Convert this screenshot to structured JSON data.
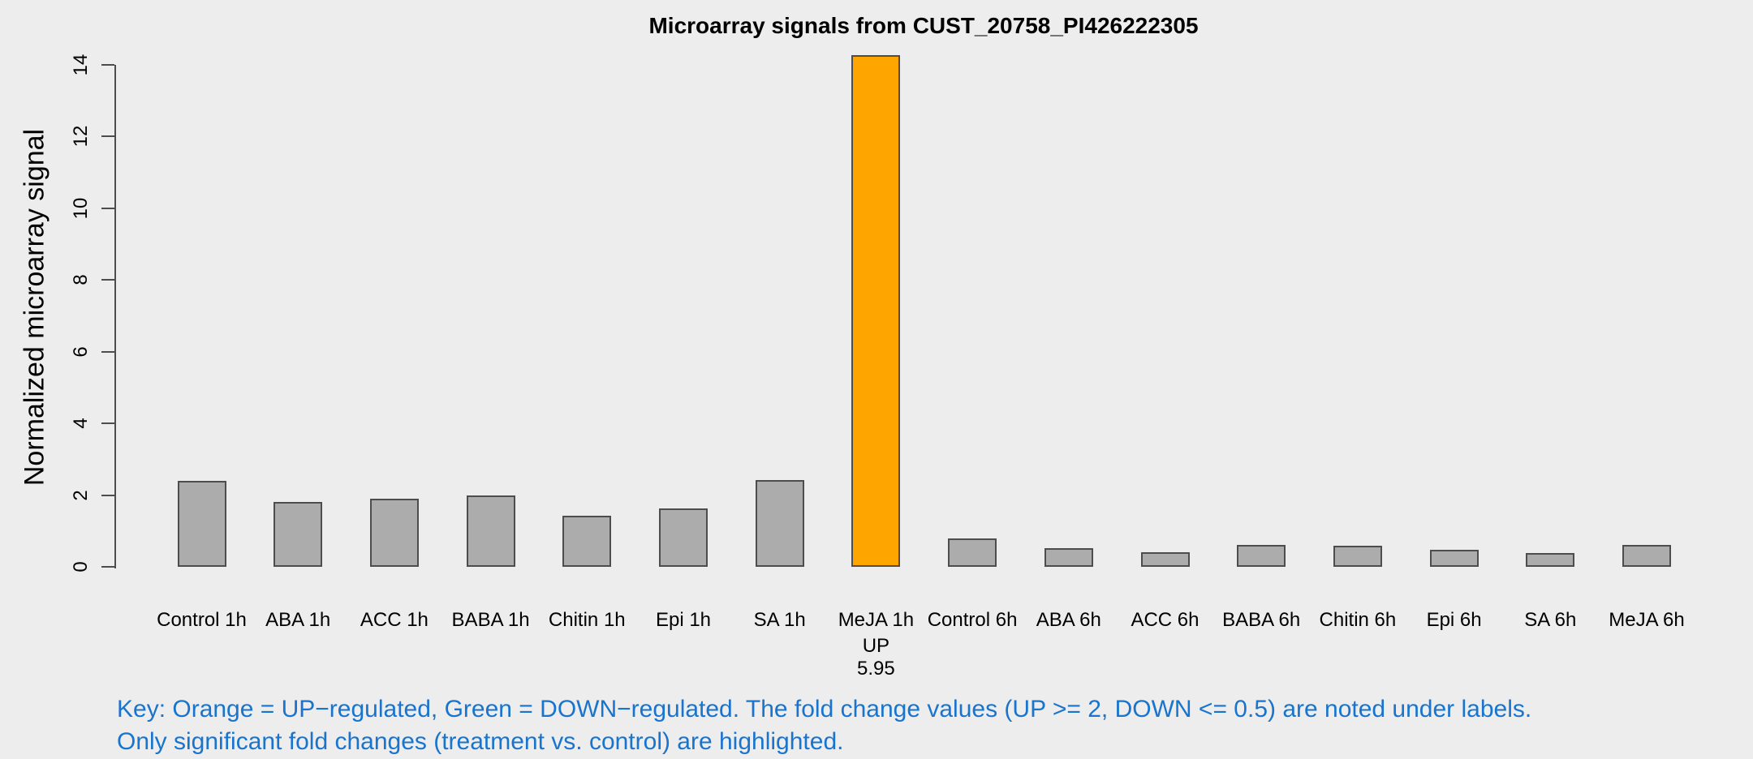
{
  "title": "Microarray signals from CUST_20758_PI426222305",
  "chart_data": {
    "type": "bar",
    "title": "Microarray signals from CUST_20758_PI426222305",
    "xlabel": "",
    "ylabel": "Normalized microarray signal",
    "ylim": [
      0,
      14.5
    ],
    "yticks": [
      0,
      2,
      4,
      6,
      8,
      10,
      12,
      14
    ],
    "grid": false,
    "legend": "none",
    "categories": [
      "Control 1h",
      "ABA 1h",
      "ACC 1h",
      "BABA 1h",
      "Chitin 1h",
      "Epi 1h",
      "SA 1h",
      "MeJA 1h",
      "Control 6h",
      "ABA 6h",
      "ACC 6h",
      "BABA 6h",
      "Chitin 6h",
      "Epi 6h",
      "SA 6h",
      "MeJA 6h"
    ],
    "values": [
      2.4,
      1.82,
      1.91,
      2.0,
      1.43,
      1.63,
      2.43,
      14.28,
      0.8,
      0.52,
      0.4,
      0.62,
      0.58,
      0.47,
      0.39,
      0.61
    ],
    "bar_default_color": "#ACACAC",
    "bar_border_color": "#4D4D4D",
    "annotations": [
      {
        "category": "MeJA 1h",
        "index": 7,
        "direction": "UP",
        "fold_change": "5.95",
        "color": "#FFA500"
      }
    ]
  },
  "key": {
    "line1": "Key: Orange = UP−regulated, Green = DOWN−regulated. The fold change values (UP >= 2, DOWN <= 0.5) are noted under labels.",
    "line2": "Only significant fold changes (treatment vs. control) are highlighted.",
    "color": "#1874CD"
  },
  "colors": {
    "background": "#EDEDED",
    "up_highlight": "#FFA500",
    "axis": "#4D4D4D",
    "text": "#000000"
  }
}
